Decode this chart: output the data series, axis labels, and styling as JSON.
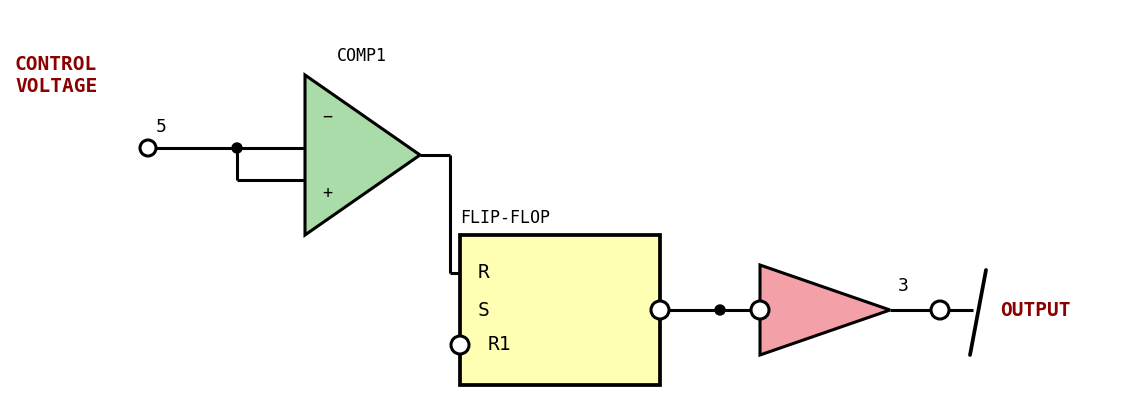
{
  "bg_color": "#ffffff",
  "line_color": "#000000",
  "line_width": 2.2,
  "control_voltage_label": "CONTROL\nVOLTAGE",
  "control_voltage_color": "#8b0000",
  "label_5": "5",
  "label_3": "3",
  "label_output": "OUTPUT",
  "output_color": "#8b0000",
  "comp1_label": "COMP1",
  "comp1_color": "#aadcaa",
  "flipflop_label": "FLIP-FLOP",
  "flipflop_color": "#ffffb3",
  "flipflop_border": "#000000",
  "buffer_color": "#f4a0a8",
  "font_family": "monospace"
}
